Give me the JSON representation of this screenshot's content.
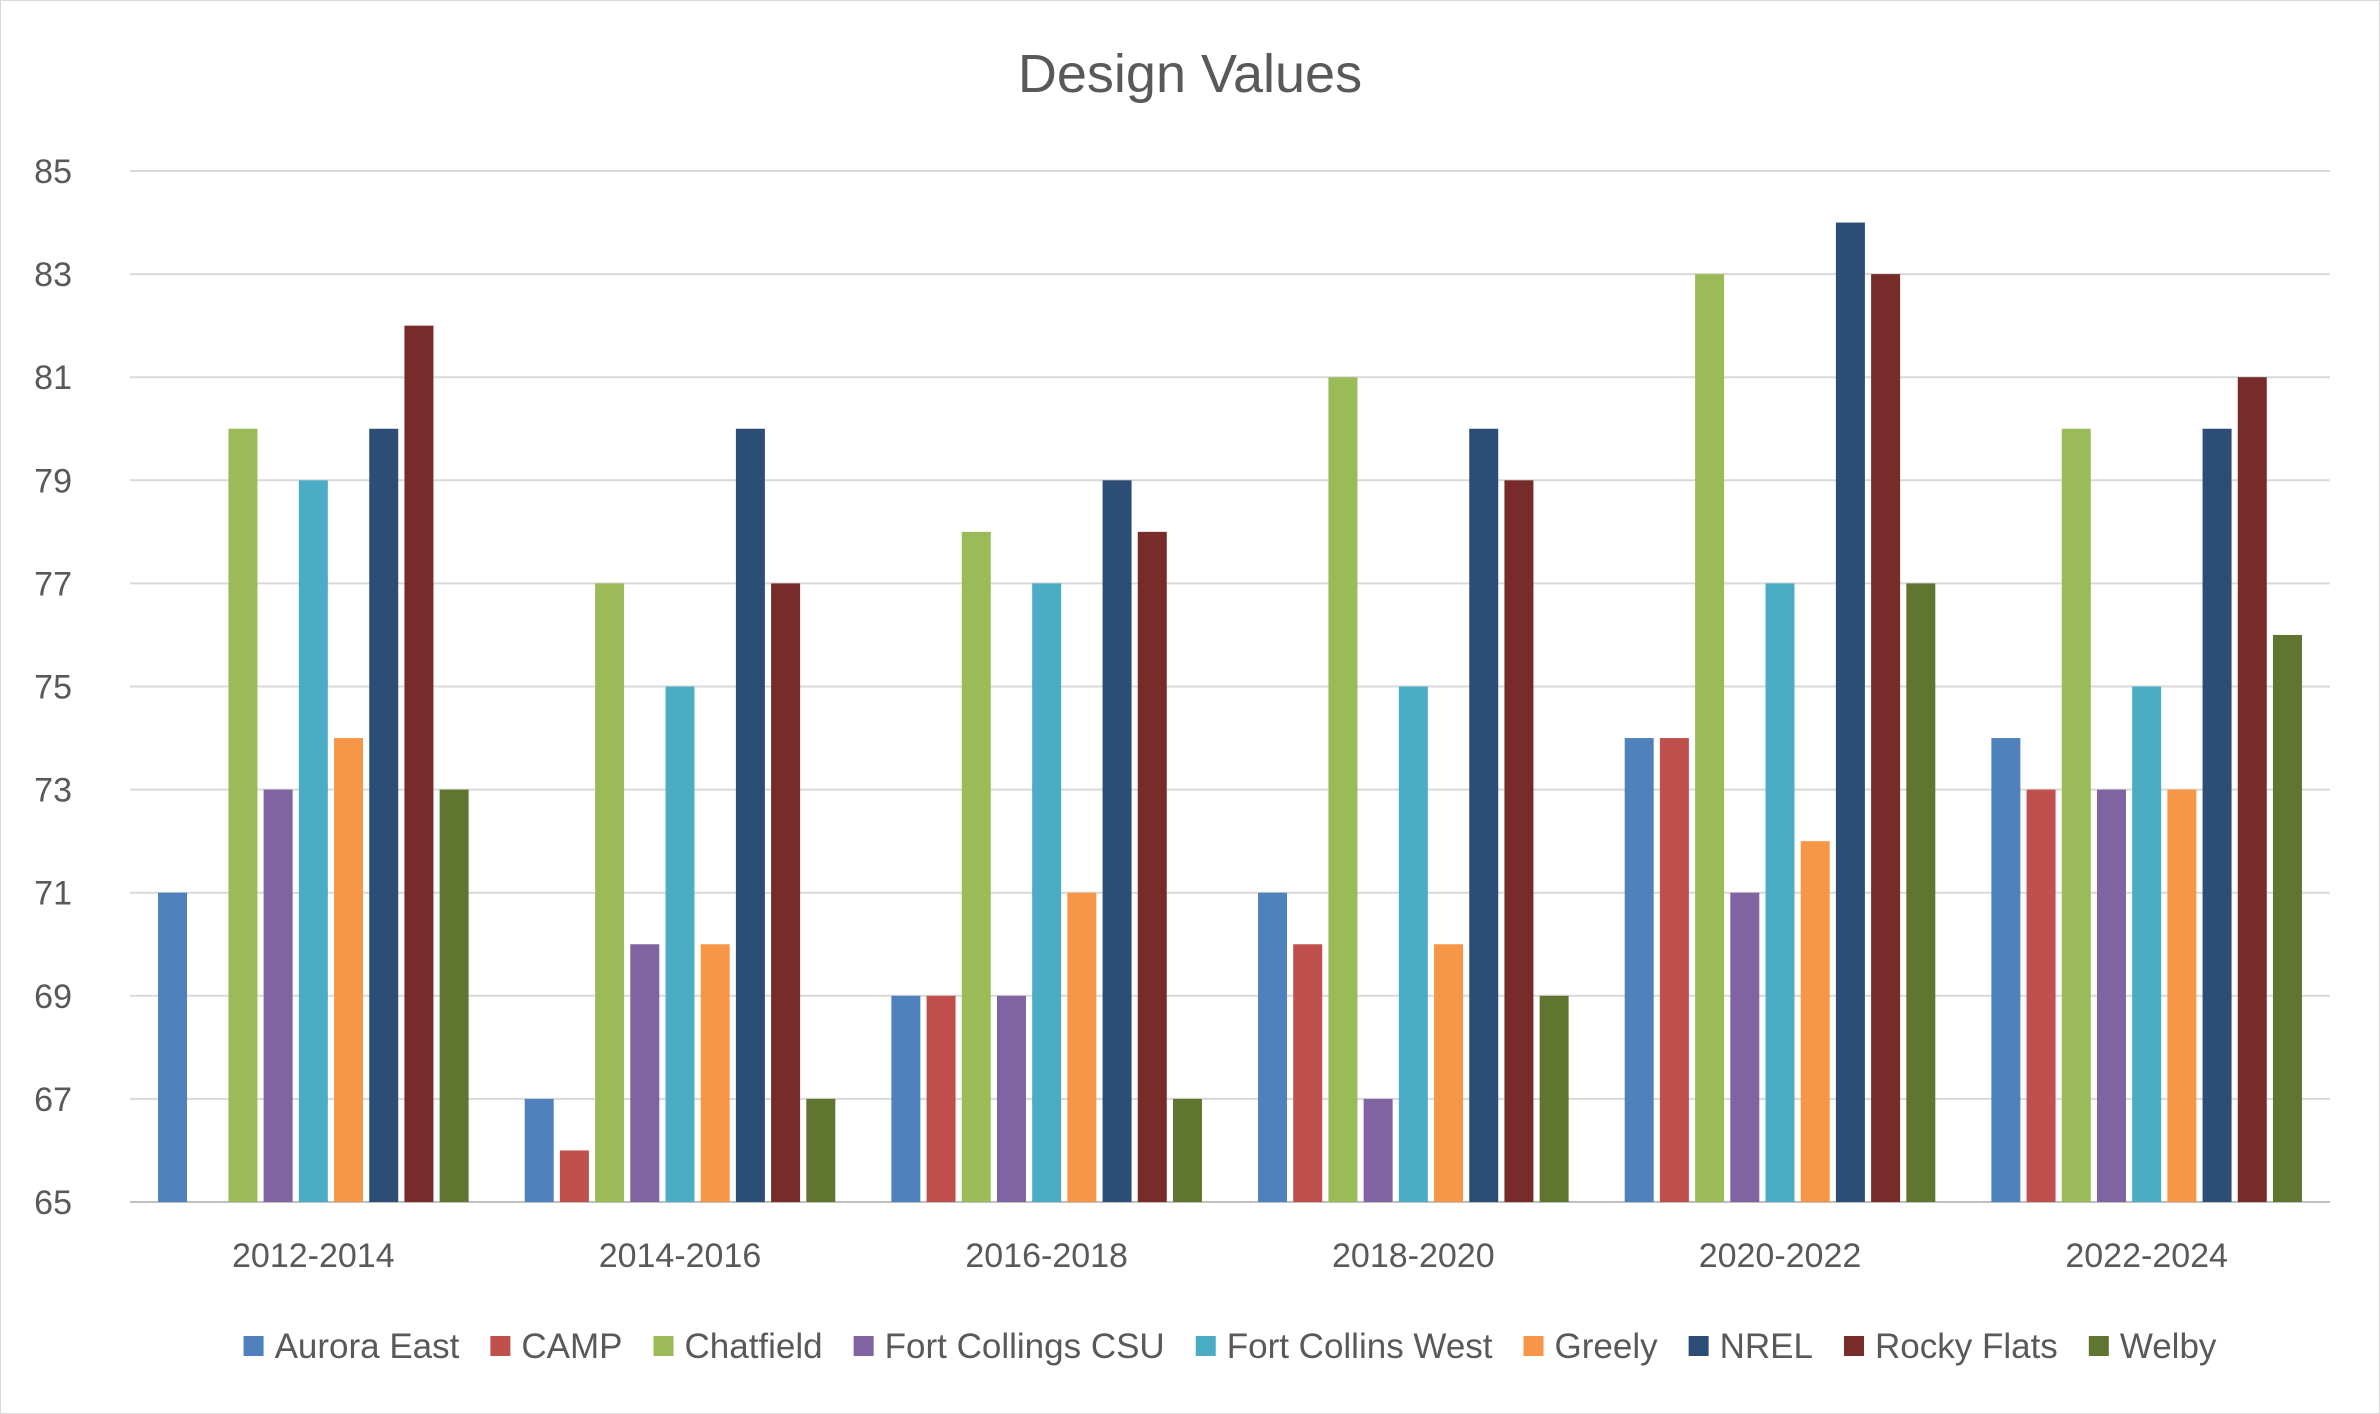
{
  "chart_data": {
    "type": "bar",
    "title": "Design Values",
    "xlabel": "",
    "ylabel": "",
    "ylim": [
      65,
      85
    ],
    "yticks": [
      65,
      67,
      69,
      71,
      73,
      75,
      77,
      79,
      81,
      83,
      85
    ],
    "grid": true,
    "legend_position": "bottom",
    "categories": [
      "2012-2014",
      "2014-2016",
      "2016-2018",
      "2018-2020",
      "2020-2022",
      "2022-2024"
    ],
    "series": [
      {
        "name": "Aurora East",
        "color": "#4f81bd",
        "values": [
          71,
          67,
          69,
          71,
          74,
          74
        ]
      },
      {
        "name": "CAMP",
        "color": "#c0504d",
        "values": [
          null,
          66,
          69,
          70,
          74,
          73
        ]
      },
      {
        "name": "Chatfield",
        "color": "#9bbb59",
        "values": [
          80,
          77,
          78,
          81,
          83,
          80
        ]
      },
      {
        "name": "Fort Collings CSU",
        "color": "#8064a2",
        "values": [
          73,
          70,
          69,
          67,
          71,
          73
        ]
      },
      {
        "name": "Fort Collins West",
        "color": "#4bacc6",
        "values": [
          79,
          75,
          77,
          75,
          77,
          75
        ]
      },
      {
        "name": "Greely",
        "color": "#f79646",
        "values": [
          74,
          70,
          71,
          70,
          72,
          73
        ]
      },
      {
        "name": "NREL",
        "color": "#2c4d75",
        "values": [
          80,
          80,
          79,
          80,
          84,
          80
        ]
      },
      {
        "name": "Rocky Flats",
        "color": "#772c2a",
        "values": [
          82,
          77,
          78,
          79,
          83,
          81
        ]
      },
      {
        "name": "Welby",
        "color": "#5f7530",
        "values": [
          73,
          67,
          67,
          69,
          77,
          76
        ]
      }
    ]
  }
}
